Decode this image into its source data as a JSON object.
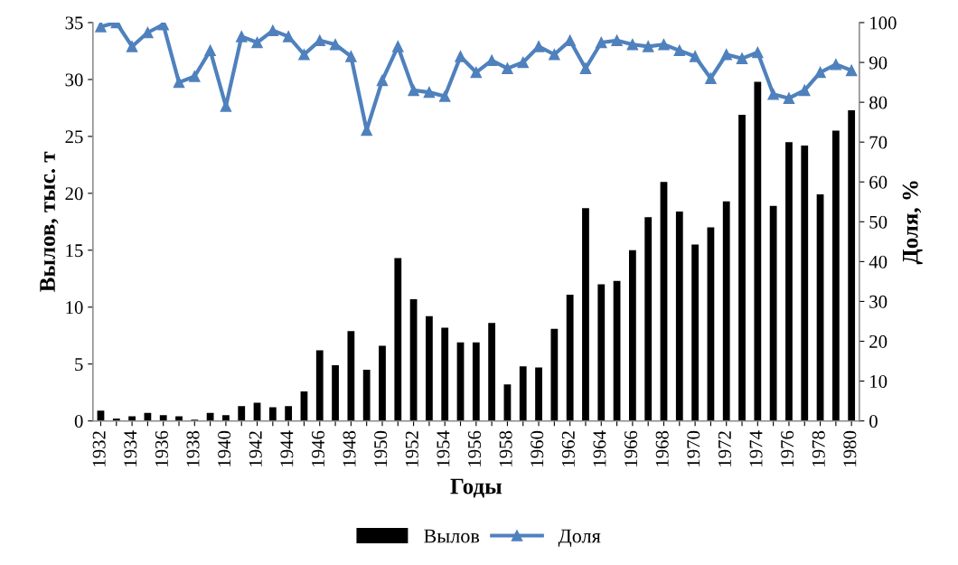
{
  "chart_data": {
    "type": "bar",
    "xlabel": "Годы",
    "ylabel": "Вылов, тыс. т",
    "y2label": "Доля, %",
    "categories": [
      "1932",
      null,
      "1934",
      null,
      "1936",
      null,
      "1938",
      null,
      "1940",
      null,
      "1942",
      null,
      "1944",
      null,
      "1946",
      null,
      "1948",
      null,
      "1950",
      null,
      "1952",
      null,
      "1954",
      null,
      "1956",
      null,
      "1958",
      null,
      "1960",
      null,
      "1962",
      null,
      "1964",
      null,
      "1966",
      null,
      "1968",
      null,
      "1970",
      null,
      "1972",
      null,
      "1974",
      null,
      "1976",
      null,
      "1978",
      null,
      "1980"
    ],
    "series": [
      {
        "name": "Вылов",
        "color": "#000000",
        "values": [
          0.9,
          0.2,
          0.4,
          0.7,
          0.5,
          0.4,
          0.1,
          0.7,
          0.5,
          1.3,
          1.6,
          1.2,
          1.3,
          2.6,
          6.2,
          4.9,
          7.9,
          4.5,
          6.6,
          14.3,
          10.7,
          9.2,
          8.2,
          6.9,
          6.9,
          8.6,
          3.2,
          4.8,
          4.7,
          8.1,
          11.1,
          18.7,
          12.0,
          12.3,
          15.0,
          17.9,
          21.0,
          18.4,
          15.5,
          17.0,
          19.3,
          26.9,
          29.8,
          18.9,
          24.5,
          24.2,
          19.9,
          25.5,
          27.3
        ]
      },
      {
        "name": "Доля",
        "type": "line",
        "axis": "y2",
        "color": "#4f81bd",
        "marker": "triangle",
        "values": [
          99,
          100,
          94,
          97.5,
          99.5,
          85,
          86.5,
          93,
          79,
          96.5,
          95,
          98,
          96.5,
          92,
          95.5,
          94.5,
          91.5,
          73,
          85.5,
          94,
          83,
          82.5,
          81.5,
          91.5,
          87.5,
          90.5,
          88.5,
          90,
          94,
          92,
          95.5,
          88.5,
          95,
          95.5,
          94.5,
          94,
          94.5,
          93,
          91.5,
          86,
          92,
          91,
          92.5,
          82,
          81,
          83,
          87.5,
          89.5,
          88
        ]
      }
    ],
    "ylim": [
      0,
      35
    ],
    "yticks": [
      0,
      5,
      10,
      15,
      20,
      25,
      30,
      35
    ],
    "y2lim": [
      0,
      100
    ],
    "y2ticks": [
      0,
      10,
      20,
      30,
      40,
      50,
      60,
      70,
      80,
      90,
      100
    ],
    "grid": false,
    "legend": "bottom"
  }
}
